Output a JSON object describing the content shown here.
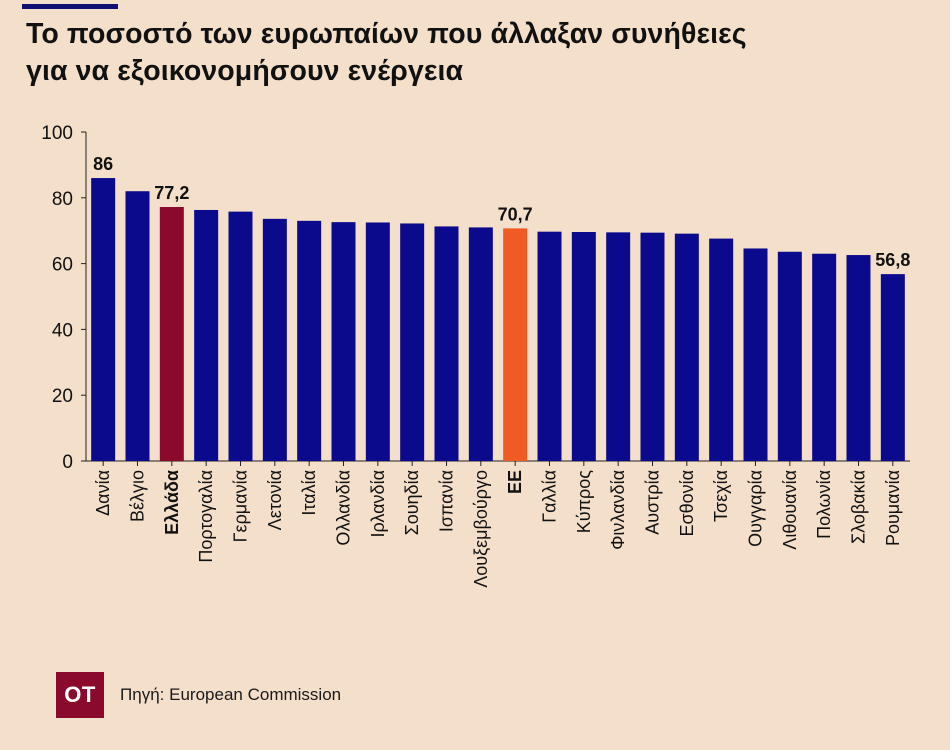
{
  "header": {
    "title_line1": "Το ποσοστό των ευρωπαίων που άλλαξαν συνήθειες",
    "title_line2": "για να εξοικονομήσουν ενέργεια"
  },
  "footer": {
    "logo_text": "OT",
    "source": "Πηγή: European Commission"
  },
  "colors": {
    "default_bar": "#0b0a8c",
    "greece_bar": "#8a0a2c",
    "eu_bar": "#f05a24",
    "background": "#f4dfcb"
  },
  "chart_data": {
    "type": "bar",
    "title": "Το ποσοστό των ευρωπαίων που άλλαξαν συνήθειες για να εξοικονομήσουν ενέργεια",
    "categories": [
      "Δανία",
      "Βέλγιο",
      "Ελλάδα",
      "Πορτογαλία",
      "Γερμανία",
      "Λετονία",
      "Ιταλία",
      "Ολλανδία",
      "Ιρλανδία",
      "Σουηδία",
      "Ισπανία",
      "Λουξεμβούργο",
      "ΕΕ",
      "Γαλλία",
      "Κύπρος",
      "Φινλανδία",
      "Αυστρία",
      "Εσθονία",
      "Τσεχία",
      "Ουγγαρία",
      "Λιθουανία",
      "Πολωνία",
      "Σλοβακία",
      "Ρουμανία"
    ],
    "values": [
      86,
      82,
      77.2,
      76.3,
      75.8,
      73.6,
      73,
      72.6,
      72.5,
      72.2,
      71.3,
      71,
      70.7,
      69.7,
      69.6,
      69.5,
      69.4,
      69.1,
      67.6,
      64.6,
      63.6,
      63,
      62.6,
      56.8
    ],
    "highlighted": {
      "Ελλάδα": "greece",
      "ΕΕ": "eu"
    },
    "bold_categories": [
      "Ελλάδα",
      "ΕΕ"
    ],
    "data_labels": [
      {
        "category": "Δανία",
        "text": "86"
      },
      {
        "category": "Ελλάδα",
        "text": "77,2"
      },
      {
        "category": "ΕΕ",
        "text": "70,7"
      },
      {
        "category": "Ρουμανία",
        "text": "56,8"
      }
    ],
    "yticks": [
      0,
      20,
      40,
      60,
      80,
      100
    ],
    "ylim": [
      0,
      100
    ],
    "xlabel": "",
    "ylabel": "",
    "grid": false,
    "legend": "none"
  }
}
